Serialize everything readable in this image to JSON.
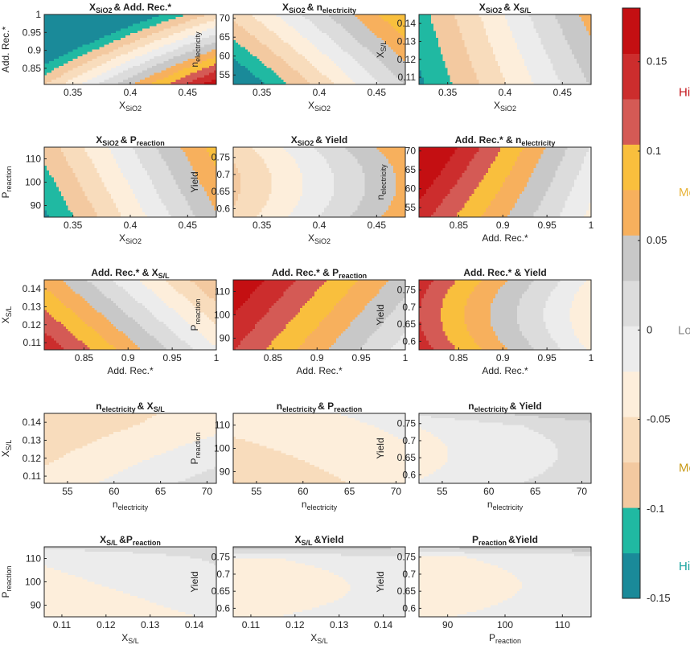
{
  "figure": {
    "colorbar": {
      "bands": [
        "#1a8a99",
        "#20b9a2",
        "#f3c9a0",
        "#f8dcbc",
        "#fdeedb",
        "#ececec",
        "#dcdcdc",
        "#c8c8c8",
        "#f7b05d",
        "#f9bf3d",
        "#d45a55",
        "#cc2d2d",
        "#c40f12"
      ],
      "ticks": [
        {
          "value": "0.15",
          "at": 0.15
        },
        {
          "value": "0.1",
          "at": 0.1
        },
        {
          "value": "0.05",
          "at": 0.05
        },
        {
          "value": "0",
          "at": 0
        },
        {
          "value": "-0.05",
          "at": -0.05
        },
        {
          "value": "-0.1",
          "at": -0.1
        },
        {
          "value": "-0.15",
          "at": -0.15
        }
      ],
      "range": [
        -0.15,
        0.18
      ],
      "labels": [
        {
          "text": "High",
          "color": "#c4161c",
          "at": 0.133
        },
        {
          "text": "Med.",
          "color": "#e8b43a",
          "at": 0.077
        },
        {
          "text": "Low",
          "color": "#8a8a8a",
          "at": 0.0
        },
        {
          "text": "Med.",
          "color": "#c89a18",
          "at": -0.077
        },
        {
          "text": "High",
          "color": "#1aa3a0",
          "at": -0.132
        }
      ]
    }
  },
  "chart_data": [
    {
      "type": "contour",
      "title_base": "X",
      "title_sub": "SiO2",
      "title_rest": "& Add. Rec.*",
      "xlabel_base": "X",
      "xlabel_sub": "SiO2",
      "ylabel_base": "Add. Rec.*",
      "ylabel_sub": "",
      "xticks": [
        "0.35",
        "0.4",
        "0.45"
      ],
      "yticks": [
        "0.85",
        "0.9",
        "0.95",
        "1"
      ],
      "xlim": [
        0.325,
        0.475
      ],
      "ylim": [
        0.805,
        1.0
      ]
    },
    {
      "type": "contour",
      "title_base": "X",
      "title_sub": "SiO2",
      "title_rest": "& n",
      "title_sub2": "electricity",
      "xlabel_base": "X",
      "xlabel_sub": "SiO2",
      "ylabel_base": "n",
      "ylabel_sub": "electricity",
      "xticks": [
        "0.35",
        "0.4",
        "0.45"
      ],
      "yticks": [
        "55",
        "60",
        "65",
        "70"
      ],
      "xlim": [
        0.325,
        0.475
      ],
      "ylim": [
        52.5,
        71
      ]
    },
    {
      "type": "contour",
      "title_base": "X",
      "title_sub": "SiO2",
      "title_rest": "& X",
      "title_sub2": "S/L",
      "xlabel_base": "X",
      "xlabel_sub": "SiO2",
      "ylabel_base": "X",
      "ylabel_sub": "S/L",
      "xticks": [
        "0.35",
        "0.4",
        "0.45"
      ],
      "yticks": [
        "0.11",
        "0.12",
        "0.13",
        "0.14"
      ],
      "xlim": [
        0.325,
        0.475
      ],
      "ylim": [
        0.106,
        0.145
      ]
    },
    {
      "type": "contour",
      "title_base": "X",
      "title_sub": "SiO2",
      "title_rest": "& P",
      "title_sub2": "reaction",
      "xlabel_base": "X",
      "xlabel_sub": "SiO2",
      "ylabel_base": "P",
      "ylabel_sub": "reaction",
      "xticks": [
        "0.35",
        "0.4",
        "0.45"
      ],
      "yticks": [
        "90",
        "100",
        "110"
      ],
      "xlim": [
        0.325,
        0.475
      ],
      "ylim": [
        85,
        115
      ]
    },
    {
      "type": "contour",
      "title_base": "X",
      "title_sub": "SiO2",
      "title_rest": "& Yield",
      "xlabel_base": "X",
      "xlabel_sub": "SiO2",
      "ylabel_base": "Yield",
      "ylabel_sub": "",
      "xticks": [
        "0.35",
        "0.4",
        "0.45"
      ],
      "yticks": [
        "0.6",
        "0.65",
        "0.7",
        "0.75"
      ],
      "xlim": [
        0.325,
        0.475
      ],
      "ylim": [
        0.575,
        0.78
      ]
    },
    {
      "type": "contour",
      "title_base": "Add. Rec.* & n",
      "title_sub": "electricity",
      "title_rest": "",
      "xlabel_base": "Add. Rec.*",
      "xlabel_sub": "",
      "ylabel_base": "n",
      "ylabel_sub": "electricity",
      "xticks": [
        "0.85",
        "0.9",
        "0.95",
        "1"
      ],
      "yticks": [
        "55",
        "60",
        "65",
        "70"
      ],
      "xlim": [
        0.805,
        1.0
      ],
      "ylim": [
        52.5,
        71
      ]
    },
    {
      "type": "contour",
      "title_base": "Add. Rec.* & X",
      "title_sub": "S/L",
      "title_rest": "",
      "xlabel_base": "Add. Rec.*",
      "xlabel_sub": "",
      "ylabel_base": "X",
      "ylabel_sub": "S/L",
      "xticks": [
        "0.85",
        "0.9",
        "0.95",
        "1"
      ],
      "yticks": [
        "0.11",
        "0.12",
        "0.13",
        "0.14"
      ],
      "xlim": [
        0.805,
        1.0
      ],
      "ylim": [
        0.106,
        0.145
      ]
    },
    {
      "type": "contour",
      "title_base": "Add. Rec.* & P",
      "title_sub": "reaction",
      "title_rest": "",
      "xlabel_base": "Add. Rec.*",
      "xlabel_sub": "",
      "ylabel_base": "P",
      "ylabel_sub": "reaction",
      "xticks": [
        "0.85",
        "0.9",
        "0.95",
        "1"
      ],
      "yticks": [
        "90",
        "100",
        "110"
      ],
      "xlim": [
        0.805,
        1.0
      ],
      "ylim": [
        85,
        115
      ]
    },
    {
      "type": "contour",
      "title_base": "Add. Rec.* & Yield",
      "title_sub": "",
      "title_rest": "",
      "xlabel_base": "Add. Rec.*",
      "xlabel_sub": "",
      "ylabel_base": "Yield",
      "ylabel_sub": "",
      "xticks": [
        "0.85",
        "0.9",
        "0.95",
        "1"
      ],
      "yticks": [
        "0.6",
        "0.65",
        "0.7",
        "0.75"
      ],
      "xlim": [
        0.805,
        1.0
      ],
      "ylim": [
        0.575,
        0.78
      ]
    },
    {
      "type": "contour",
      "title_base": "n",
      "title_sub": "electricity",
      "title_rest": "& X",
      "title_sub2": "S/L",
      "xlabel_base": "n",
      "xlabel_sub": "electricity",
      "ylabel_base": "X",
      "ylabel_sub": "S/L",
      "xticks": [
        "55",
        "60",
        "65",
        "70"
      ],
      "yticks": [
        "0.11",
        "0.12",
        "0.13",
        "0.14"
      ],
      "xlim": [
        52.5,
        71
      ],
      "ylim": [
        0.106,
        0.145
      ]
    },
    {
      "type": "contour",
      "title_base": "n",
      "title_sub": "electricity",
      "title_rest": "& P",
      "title_sub2": "reaction",
      "xlabel_base": "n",
      "xlabel_sub": "electricity",
      "ylabel_base": "P",
      "ylabel_sub": "reaction",
      "xticks": [
        "55",
        "60",
        "65",
        "70"
      ],
      "yticks": [
        "90",
        "100",
        "110"
      ],
      "xlim": [
        52.5,
        71
      ],
      "ylim": [
        85,
        115
      ]
    },
    {
      "type": "contour",
      "title_base": "n",
      "title_sub": "electricity",
      "title_rest": "& Yield",
      "xlabel_base": "n",
      "xlabel_sub": "electricity",
      "ylabel_base": "Yield",
      "ylabel_sub": "",
      "xticks": [
        "55",
        "60",
        "65",
        "70"
      ],
      "yticks": [
        "0.6",
        "0.65",
        "0.7",
        "0.75"
      ],
      "xlim": [
        52.5,
        71
      ],
      "ylim": [
        0.575,
        0.78
      ]
    },
    {
      "type": "contour",
      "title_base": "X",
      "title_sub": "S/L",
      "title_rest": "&P",
      "title_sub2": "reaction",
      "xlabel_base": "X",
      "xlabel_sub": "S/L",
      "ylabel_base": "P",
      "ylabel_sub": "reaction",
      "xticks": [
        "0.11",
        "0.12",
        "0.13",
        "0.14"
      ],
      "yticks": [
        "90",
        "100",
        "110"
      ],
      "xlim": [
        0.106,
        0.145
      ],
      "ylim": [
        85,
        115
      ]
    },
    {
      "type": "contour",
      "title_base": "X",
      "title_sub": "S/L",
      "title_rest": "&Yield",
      "xlabel_base": "X",
      "xlabel_sub": "S/L",
      "ylabel_base": "Yield",
      "ylabel_sub": "",
      "xticks": [
        "0.11",
        "0.12",
        "0.13",
        "0.14"
      ],
      "yticks": [
        "0.6",
        "0.65",
        "0.7",
        "0.75"
      ],
      "xlim": [
        0.106,
        0.145
      ],
      "ylim": [
        0.575,
        0.78
      ]
    },
    {
      "type": "contour",
      "title_base": "P",
      "title_sub": "reaction",
      "title_rest": "&Yield",
      "xlabel_base": "P",
      "xlabel_sub": "reaction",
      "ylabel_base": "Yield",
      "ylabel_sub": "",
      "xticks": [
        "90",
        "100",
        "110"
      ],
      "yticks": [
        "0.6",
        "0.65",
        "0.7",
        "0.75"
      ],
      "xlim": [
        85,
        115
      ],
      "ylim": [
        0.575,
        0.78
      ]
    }
  ]
}
